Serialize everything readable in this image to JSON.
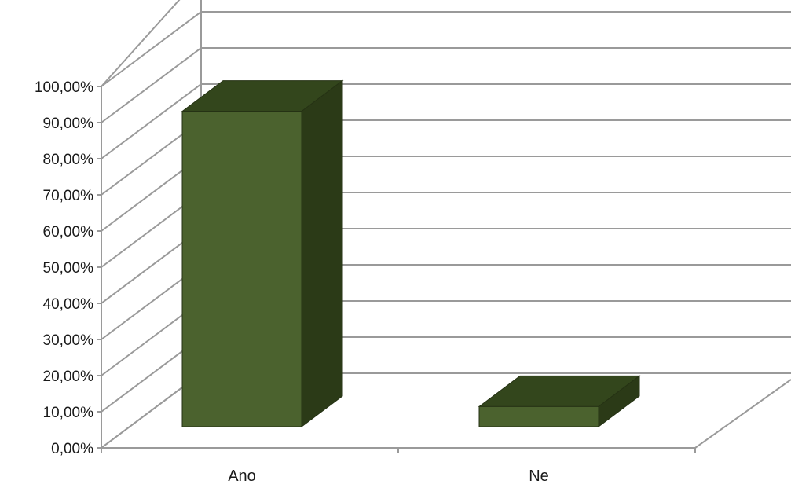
{
  "chart_data": {
    "type": "bar",
    "categories": [
      "Ano",
      "Ne"
    ],
    "values": [
      0.94,
      0.06
    ],
    "yticks": [
      "0,00%",
      "10,00%",
      "20,00%",
      "30,00%",
      "40,00%",
      "50,00%",
      "60,00%",
      "70,00%",
      "80,00%",
      "90,00%",
      "100,00%"
    ],
    "ylim": [
      0,
      1
    ],
    "grid": true,
    "legend": "none",
    "title": "",
    "xlabel": "",
    "ylabel": "",
    "colors": {
      "bar_front": "#4b622e",
      "bar_side": "#2b3a17",
      "bar_top": "#33461c",
      "bar_edge": "#253214",
      "grid": "#9a9a9a",
      "axis": "#9a9a9a"
    }
  }
}
